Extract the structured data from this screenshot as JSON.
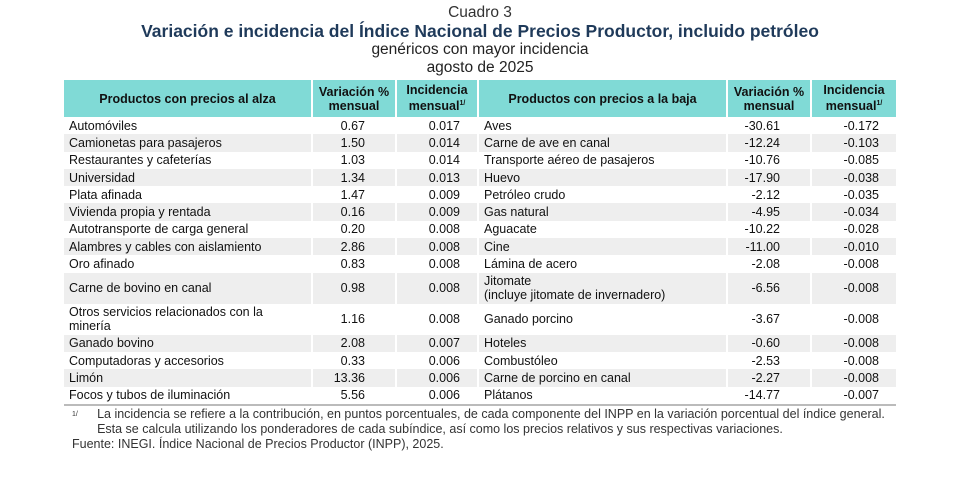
{
  "title": {
    "label": "Cuadro 3",
    "main": "Variación e incidencia del Índice Nacional de Precios Productor, incluido petróleo",
    "subtitle": "genéricos con mayor incidencia",
    "period": "agosto de 2025"
  },
  "headers": {
    "up": "Productos con precios al alza",
    "var": "Variación % mensual",
    "inc": "Incidencia mensual",
    "inc_mark": "1/",
    "down": "Productos con precios a la baja"
  },
  "rows": [
    {
      "up": "Automóviles",
      "up_var": "0.67",
      "up_inc": "0.017",
      "down": "Aves",
      "down_var": "-30.61",
      "down_inc": "-0.172"
    },
    {
      "up": "Camionetas para pasajeros",
      "up_var": "1.50",
      "up_inc": "0.014",
      "down": "Carne de ave en canal",
      "down_var": "-12.24",
      "down_inc": "-0.103"
    },
    {
      "up": "Restaurantes y cafeterías",
      "up_var": "1.03",
      "up_inc": "0.014",
      "down": "Transporte aéreo de pasajeros",
      "down_var": "-10.76",
      "down_inc": "-0.085"
    },
    {
      "up": "Universidad",
      "up_var": "1.34",
      "up_inc": "0.013",
      "down": "Huevo",
      "down_var": "-17.90",
      "down_inc": "-0.038"
    },
    {
      "up": "Plata afinada",
      "up_var": "1.47",
      "up_inc": "0.009",
      "down": "Petróleo crudo",
      "down_var": "-2.12",
      "down_inc": "-0.035"
    },
    {
      "up": "Vivienda propia y rentada",
      "up_var": "0.16",
      "up_inc": "0.009",
      "down": "Gas natural",
      "down_var": "-4.95",
      "down_inc": "-0.034"
    },
    {
      "up": "Autotransporte de carga general",
      "up_var": "0.20",
      "up_inc": "0.008",
      "down": "Aguacate",
      "down_var": "-10.22",
      "down_inc": "-0.028"
    },
    {
      "up": "Alambres y cables con aislamiento",
      "up_var": "2.86",
      "up_inc": "0.008",
      "down": "Cine",
      "down_var": "-11.00",
      "down_inc": "-0.010"
    },
    {
      "up": "Oro afinado",
      "up_var": "0.83",
      "up_inc": "0.008",
      "down": "Lámina de acero",
      "down_var": "-2.08",
      "down_inc": "-0.008"
    },
    {
      "up": "Carne de bovino en canal",
      "up_var": "0.98",
      "up_inc": "0.008",
      "down": "Jitomate\n(incluye jitomate de invernadero)",
      "down_var": "-6.56",
      "down_inc": "-0.008"
    },
    {
      "up": "Otros servicios relacionados con la minería",
      "up_var": "1.16",
      "up_inc": "0.008",
      "down": "Ganado porcino",
      "down_var": "-3.67",
      "down_inc": "-0.008"
    },
    {
      "up": "Ganado bovino",
      "up_var": "2.08",
      "up_inc": "0.007",
      "down": "Hoteles",
      "down_var": "-0.60",
      "down_inc": "-0.008"
    },
    {
      "up": "Computadoras y accesorios",
      "up_var": "0.33",
      "up_inc": "0.006",
      "down": "Combustóleo",
      "down_var": "-2.53",
      "down_inc": "-0.008"
    },
    {
      "up": "Limón",
      "up_var": "13.36",
      "up_inc": "0.006",
      "down": "Carne de porcino en canal",
      "down_var": "-2.27",
      "down_inc": "-0.008"
    },
    {
      "up": "Focos y tubos de iluminación",
      "up_var": "5.56",
      "up_inc": "0.006",
      "down": "Plátanos",
      "down_var": "-14.77",
      "down_inc": "-0.007"
    }
  ],
  "footnote": {
    "mark": "1/",
    "text": "La incidencia se refiere a la contribución, en puntos porcentuales, de cada componente del INPP en la variación porcentual del índice general. Esta se calcula utilizando los ponderadores de cada subíndice, así como los precios relativos y sus respectivas variaciones."
  },
  "source": "Fuente: INEGI. Índice Nacional de Precios Productor (INPP), 2025."
}
